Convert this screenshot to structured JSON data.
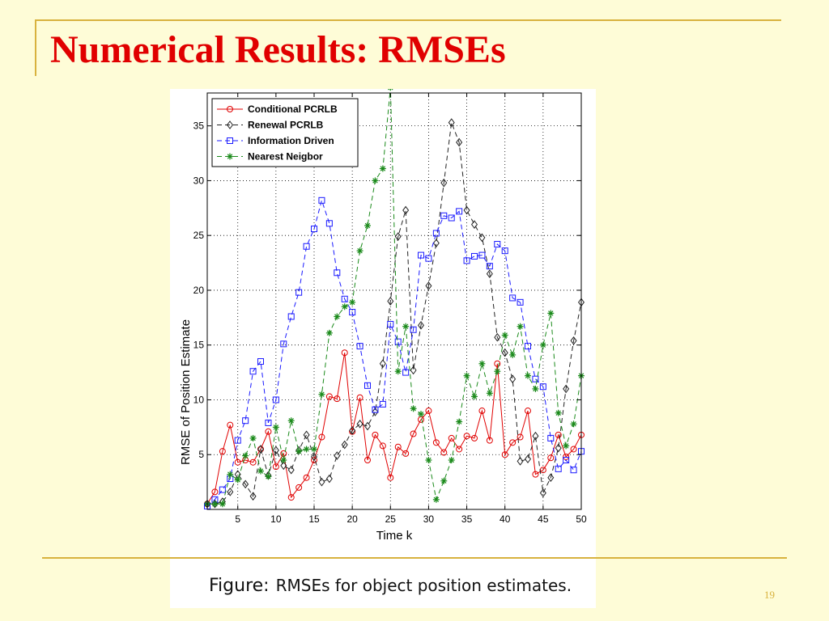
{
  "slide": {
    "title": "Numerical Results: RMSEs",
    "caption_prefix": "Figure:",
    "caption_text": "RMSEs for object position estimates.",
    "slide_number": "19",
    "accent_color": "#d8b23e",
    "title_color": "#e00000"
  },
  "chart_data": {
    "type": "line",
    "title": "",
    "xlabel": "Time k",
    "ylabel": "RMSE of Position Estimate",
    "xlim": [
      1,
      50
    ],
    "ylim": [
      0,
      38
    ],
    "grid": true,
    "legend_position": "top-left",
    "x_ticks": [
      5,
      10,
      15,
      20,
      25,
      30,
      35,
      40,
      45,
      50
    ],
    "y_ticks": [
      5,
      10,
      15,
      20,
      25,
      30,
      35
    ],
    "x": [
      1,
      2,
      3,
      4,
      5,
      6,
      7,
      8,
      9,
      10,
      11,
      12,
      13,
      14,
      15,
      16,
      17,
      18,
      19,
      20,
      21,
      22,
      23,
      24,
      25,
      26,
      27,
      28,
      29,
      30,
      31,
      32,
      33,
      34,
      35,
      36,
      37,
      38,
      39,
      40,
      41,
      42,
      43,
      44,
      45,
      46,
      47,
      48,
      49,
      50
    ],
    "series": [
      {
        "name": "Conditional PCRLB",
        "color": "#e00000",
        "line_style": "solid",
        "marker": "circle",
        "values": [
          0.5,
          1.6,
          5.3,
          7.7,
          4.3,
          4.5,
          4.3,
          5.5,
          7.1,
          3.9,
          5.1,
          1.1,
          2.0,
          2.9,
          4.5,
          6.6,
          10.3,
          10.1,
          14.3,
          7.1,
          10.2,
          4.5,
          6.8,
          5.8,
          2.9,
          5.7,
          5.1,
          6.9,
          8.2,
          9.0,
          6.1,
          5.2,
          6.5,
          5.5,
          6.7,
          6.5,
          9.0,
          6.3,
          13.3,
          5.0,
          6.1,
          6.6,
          9.0,
          3.2,
          3.6,
          4.7,
          6.8,
          4.8,
          5.5,
          6.8
        ]
      },
      {
        "name": "Renewal PCRLB",
        "color": "#222222",
        "line_style": "dashed",
        "marker": "diamond",
        "values": [
          0.5,
          0.5,
          0.7,
          1.6,
          3.2,
          2.3,
          1.2,
          5.5,
          3.1,
          5.4,
          4.0,
          3.6,
          5.4,
          6.8,
          4.8,
          2.5,
          2.8,
          4.9,
          5.9,
          7.2,
          7.8,
          7.6,
          8.9,
          13.3,
          19.0,
          24.9,
          27.3,
          12.7,
          16.8,
          20.4,
          24.3,
          29.8,
          35.3,
          33.5,
          27.3,
          26.0,
          24.8,
          21.5,
          15.7,
          14.3,
          11.9,
          4.4,
          4.6,
          6.7,
          1.5,
          2.9,
          5.6,
          11.0,
          15.4,
          18.9
        ]
      },
      {
        "name": "Information Driven",
        "color": "#1a1aff",
        "line_style": "dashed",
        "marker": "square",
        "values": [
          0.3,
          0.9,
          1.8,
          2.8,
          6.3,
          8.1,
          12.6,
          13.5,
          7.9,
          10.0,
          15.1,
          17.6,
          19.8,
          24.0,
          25.6,
          28.2,
          26.1,
          21.6,
          19.2,
          18.0,
          14.9,
          11.3,
          9.1,
          9.6,
          16.9,
          15.3,
          12.5,
          16.4,
          23.2,
          22.9,
          25.2,
          26.8,
          26.6,
          27.2,
          22.7,
          23.1,
          23.2,
          22.2,
          24.2,
          23.6,
          19.3,
          18.9,
          14.9,
          11.9,
          11.2,
          6.5,
          3.7,
          4.5,
          3.6,
          5.3
        ]
      },
      {
        "name": "Nearest Neigbor",
        "color": "#1a8a1a",
        "line_style": "dashed",
        "marker": "star",
        "values": [
          0.5,
          0.5,
          0.5,
          3.2,
          2.7,
          4.9,
          6.5,
          3.5,
          3.0,
          7.5,
          4.5,
          8.1,
          5.3,
          5.5,
          5.5,
          10.5,
          16.1,
          17.6,
          18.5,
          18.9,
          23.6,
          25.9,
          30.0,
          31.1,
          38.5,
          12.6,
          16.7,
          9.2,
          8.7,
          4.5,
          0.9,
          2.6,
          4.5,
          8.0,
          12.2,
          10.3,
          13.3,
          10.6,
          12.6,
          15.9,
          14.1,
          16.7,
          12.2,
          11.0,
          15.0,
          17.9,
          8.8,
          5.8,
          7.8,
          12.2
        ]
      }
    ]
  }
}
